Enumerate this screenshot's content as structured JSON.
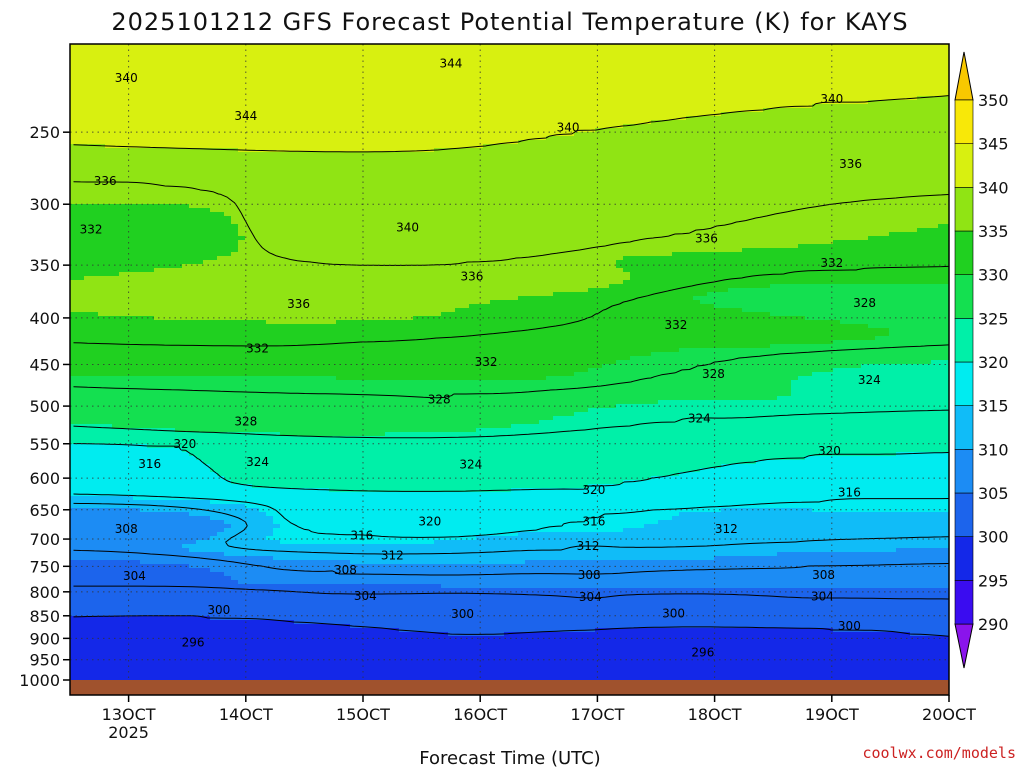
{
  "title": "2025101212 GFS Forecast Potential Temperature (K) for KAYS",
  "credit": "coolwx.com/models",
  "chart_data": {
    "type": "heatmap",
    "title": "2025101212 GFS Forecast Potential Temperature (K) for KAYS",
    "xlabel": "Forecast Time (UTC)",
    "ylabel": "",
    "y_scale": "log-pressure",
    "y_units": "hPa",
    "x_units": "days (Oct 2025)",
    "xlim": [
      12.5,
      20.0
    ],
    "ylim": [
      1000,
      200
    ],
    "x_ticks": [
      {
        "value": 13,
        "label": "13OCT",
        "sublabel": "2025"
      },
      {
        "value": 14,
        "label": "14OCT",
        "sublabel": ""
      },
      {
        "value": 15,
        "label": "15OCT",
        "sublabel": ""
      },
      {
        "value": 16,
        "label": "16OCT",
        "sublabel": ""
      },
      {
        "value": 17,
        "label": "17OCT",
        "sublabel": ""
      },
      {
        "value": 18,
        "label": "18OCT",
        "sublabel": ""
      },
      {
        "value": 19,
        "label": "19OCT",
        "sublabel": ""
      },
      {
        "value": 20,
        "label": "20OCT",
        "sublabel": ""
      }
    ],
    "y_ticks": [
      250,
      300,
      350,
      400,
      450,
      500,
      550,
      600,
      650,
      700,
      750,
      800,
      850,
      900,
      950,
      1000
    ],
    "colorbar": {
      "levels": [
        290,
        295,
        300,
        305,
        310,
        315,
        320,
        325,
        330,
        335,
        340,
        345,
        350
      ],
      "colors": [
        "#8a14ec",
        "#3a0cf0",
        "#1428e8",
        "#1c64ec",
        "#1c8cf4",
        "#10bcf8",
        "#00ecf0",
        "#00f0a8",
        "#14e050",
        "#20d020",
        "#90e414",
        "#d8f010",
        "#f8e808",
        "#f8c800"
      ]
    },
    "contour_interval": 4,
    "contour_levels": [
      296,
      300,
      304,
      308,
      312,
      316,
      320,
      324,
      328,
      332,
      336,
      340,
      344
    ],
    "contour_labels": [
      {
        "value": 340,
        "x": 12.98,
        "p": 218
      },
      {
        "value": 344,
        "x": 14.0,
        "p": 240
      },
      {
        "value": 344,
        "x": 15.75,
        "p": 210
      },
      {
        "value": 340,
        "x": 16.75,
        "p": 247
      },
      {
        "value": 340,
        "x": 19.0,
        "p": 230
      },
      {
        "value": 336,
        "x": 12.8,
        "p": 283
      },
      {
        "value": 340,
        "x": 15.38,
        "p": 318
      },
      {
        "value": 336,
        "x": 19.16,
        "p": 271
      },
      {
        "value": 332,
        "x": 12.68,
        "p": 320
      },
      {
        "value": 336,
        "x": 17.93,
        "p": 327
      },
      {
        "value": 336,
        "x": 15.93,
        "p": 360
      },
      {
        "value": 332,
        "x": 19.0,
        "p": 348
      },
      {
        "value": 336,
        "x": 14.45,
        "p": 386
      },
      {
        "value": 328,
        "x": 19.28,
        "p": 385
      },
      {
        "value": 332,
        "x": 17.67,
        "p": 407
      },
      {
        "value": 332,
        "x": 14.1,
        "p": 432
      },
      {
        "value": 332,
        "x": 16.05,
        "p": 447
      },
      {
        "value": 328,
        "x": 17.99,
        "p": 461
      },
      {
        "value": 324,
        "x": 19.32,
        "p": 468
      },
      {
        "value": 328,
        "x": 15.65,
        "p": 492
      },
      {
        "value": 328,
        "x": 14.0,
        "p": 520
      },
      {
        "value": 324,
        "x": 17.87,
        "p": 516
      },
      {
        "value": 320,
        "x": 13.48,
        "p": 550
      },
      {
        "value": 320,
        "x": 18.98,
        "p": 560
      },
      {
        "value": 316,
        "x": 13.18,
        "p": 579
      },
      {
        "value": 324,
        "x": 14.1,
        "p": 576
      },
      {
        "value": 324,
        "x": 15.92,
        "p": 580
      },
      {
        "value": 320,
        "x": 16.97,
        "p": 618
      },
      {
        "value": 316,
        "x": 19.15,
        "p": 622
      },
      {
        "value": 308,
        "x": 12.98,
        "p": 682
      },
      {
        "value": 320,
        "x": 15.57,
        "p": 670
      },
      {
        "value": 316,
        "x": 16.97,
        "p": 670
      },
      {
        "value": 316,
        "x": 14.99,
        "p": 694
      },
      {
        "value": 312,
        "x": 18.1,
        "p": 682
      },
      {
        "value": 312,
        "x": 16.92,
        "p": 712
      },
      {
        "value": 312,
        "x": 15.25,
        "p": 730
      },
      {
        "value": 308,
        "x": 14.85,
        "p": 757
      },
      {
        "value": 304,
        "x": 13.05,
        "p": 769
      },
      {
        "value": 308,
        "x": 16.93,
        "p": 767
      },
      {
        "value": 308,
        "x": 18.93,
        "p": 767
      },
      {
        "value": 304,
        "x": 15.02,
        "p": 809
      },
      {
        "value": 304,
        "x": 16.94,
        "p": 811
      },
      {
        "value": 304,
        "x": 18.92,
        "p": 810
      },
      {
        "value": 300,
        "x": 13.77,
        "p": 838
      },
      {
        "value": 300,
        "x": 15.85,
        "p": 846
      },
      {
        "value": 300,
        "x": 17.65,
        "p": 845
      },
      {
        "value": 300,
        "x": 19.15,
        "p": 872
      },
      {
        "value": 296,
        "x": 13.55,
        "p": 909
      },
      {
        "value": 296,
        "x": 17.9,
        "p": 933
      }
    ]
  }
}
